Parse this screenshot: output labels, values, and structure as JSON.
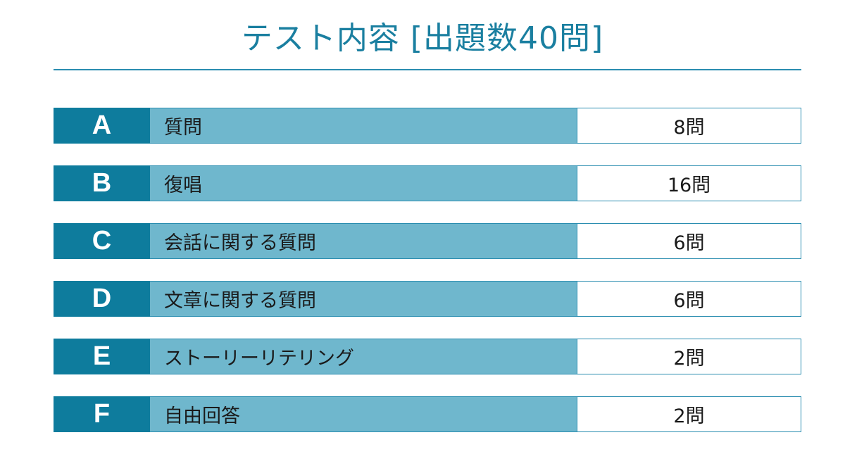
{
  "title": "テスト内容 [出題数40問]",
  "rows": [
    {
      "letter": "A",
      "name": "質問",
      "count": "8問"
    },
    {
      "letter": "B",
      "name": "復唱",
      "count": "16問"
    },
    {
      "letter": "C",
      "name": "会話に関する質問",
      "count": "6問"
    },
    {
      "letter": "D",
      "name": "文章に関する質問",
      "count": "6問"
    },
    {
      "letter": "E",
      "name": "ストーリーリテリング",
      "count": "2問"
    },
    {
      "letter": "F",
      "name": "自由回答",
      "count": "2問"
    }
  ],
  "colors": {
    "accent": "#0e7c9d",
    "row_fill": "#6fb7cd",
    "title": "#1a7fa0"
  }
}
